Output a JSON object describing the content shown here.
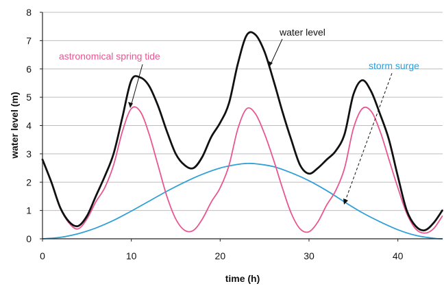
{
  "chart_data": {
    "type": "line",
    "xlabel": "time (h)",
    "ylabel": "water level (m)",
    "xlim": [
      0,
      45
    ],
    "ylim": [
      0,
      8
    ],
    "x_ticks": [
      0,
      10,
      20,
      30,
      40
    ],
    "y_ticks": [
      0,
      1,
      2,
      3,
      4,
      5,
      6,
      7,
      8
    ],
    "grid": "horizontal",
    "series": [
      {
        "name": "water level",
        "color": "#111111",
        "x": [
          0,
          1,
          2,
          3,
          4,
          5,
          6,
          7,
          8,
          9,
          10,
          11,
          12,
          13,
          14,
          15,
          16,
          17,
          18,
          19,
          20,
          21,
          22,
          23,
          24,
          25,
          26,
          27,
          28,
          29,
          30,
          31,
          32,
          33,
          34,
          35,
          36,
          37,
          38,
          39,
          40,
          41,
          42,
          43,
          44,
          45
        ],
        "y": [
          2.8,
          2.0,
          1.1,
          0.6,
          0.45,
          0.8,
          1.5,
          2.2,
          3.0,
          4.3,
          5.6,
          5.7,
          5.4,
          4.7,
          3.8,
          3.0,
          2.6,
          2.5,
          2.9,
          3.6,
          4.1,
          4.8,
          6.2,
          7.2,
          7.2,
          6.6,
          5.6,
          4.5,
          3.5,
          2.6,
          2.3,
          2.5,
          2.8,
          3.1,
          3.7,
          5.1,
          5.6,
          5.2,
          4.4,
          3.5,
          2.2,
          1.0,
          0.45,
          0.3,
          0.55,
          1.0
        ]
      },
      {
        "name": "astronomical spring tide",
        "color": "#e8558f",
        "x": [
          0,
          1,
          2,
          3,
          4,
          5,
          6,
          7,
          8,
          9,
          10,
          11,
          12,
          13,
          14,
          15,
          16,
          17,
          18,
          19,
          20,
          21,
          22,
          23,
          24,
          25,
          26,
          27,
          28,
          29,
          30,
          31,
          32,
          33,
          34,
          35,
          36,
          37,
          38,
          39,
          40,
          41,
          42,
          43,
          44,
          45
        ],
        "y": [
          2.8,
          2.0,
          1.1,
          0.55,
          0.35,
          0.7,
          1.3,
          1.8,
          2.6,
          3.8,
          4.6,
          4.5,
          3.7,
          2.6,
          1.5,
          0.7,
          0.3,
          0.3,
          0.7,
          1.3,
          1.8,
          2.6,
          3.9,
          4.6,
          4.4,
          3.7,
          2.8,
          1.8,
          0.9,
          0.35,
          0.25,
          0.6,
          1.2,
          1.7,
          2.5,
          3.9,
          4.6,
          4.5,
          3.8,
          2.8,
          1.8,
          0.9,
          0.35,
          0.2,
          0.35,
          0.8
        ]
      },
      {
        "name": "storm surge",
        "color": "#2e9fd8",
        "x": [
          0,
          2,
          4,
          6,
          8,
          10,
          12,
          14,
          16,
          18,
          20,
          22,
          23,
          24,
          26,
          28,
          30,
          32,
          34,
          36,
          38,
          40,
          42,
          44,
          45
        ],
        "y": [
          0,
          0.05,
          0.18,
          0.38,
          0.65,
          0.98,
          1.33,
          1.68,
          2.0,
          2.28,
          2.5,
          2.63,
          2.66,
          2.65,
          2.55,
          2.33,
          2.05,
          1.7,
          1.3,
          0.92,
          0.6,
          0.32,
          0.12,
          0.02,
          0
        ]
      }
    ],
    "annotations": [
      {
        "series": "water level",
        "text": "water level"
      },
      {
        "series": "astronomical spring tide",
        "text": "astronomical spring tide"
      },
      {
        "series": "storm surge",
        "text": "storm surge"
      }
    ]
  }
}
